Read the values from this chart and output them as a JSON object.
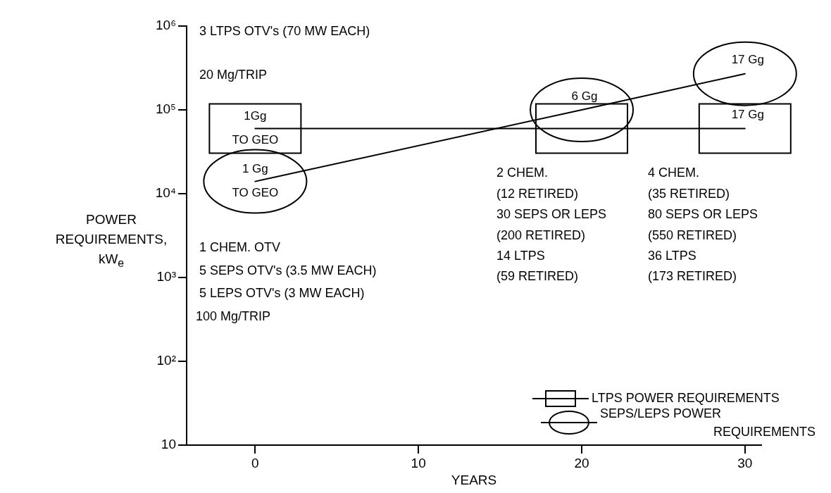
{
  "chart_data": {
    "type": "line",
    "xlabel": "YEARS",
    "ylabel": "POWER REQUIREMENTS, kW$_{e}$",
    "x": [
      0,
      20,
      30
    ],
    "series": [
      {
        "name": "LTPS POWER REQUIREMENTS",
        "color": "#000000",
        "values": [
          60000,
          60000,
          60000
        ]
      },
      {
        "name": "SEPS/LEPS POWER REQUIREMENTS",
        "color": "#000000",
        "values": [
          14000,
          100000,
          270000
        ]
      }
    ],
    "xlim": [
      -4.2,
      31
    ],
    "xticks": [
      0,
      10,
      20,
      30
    ],
    "ylim": [
      10,
      1000000
    ],
    "yticks": [
      10,
      {
        "value": 100,
        "label": "10²"
      },
      {
        "value": 1000,
        "label": "10³"
      },
      {
        "value": 10000,
        "label": "10⁴"
      },
      {
        "value": 100000,
        "label": "10⁵"
      },
      {
        "value": 1000000,
        "label": "10⁶"
      }
    ],
    "log": true,
    "grid": false,
    "legend": "bottom right",
    "line_style": "solid",
    "annotations": [
      "3 LTPS OTV's (70 MW EACH)",
      "20 Mg/TRIP",
      "1 CHEM. OTV",
      "5 SEPS OTV's (3.5 MW EACH)",
      "5 LEPS OTV's (3 MW EACH)",
      "100 Mg/TRIP",
      "2 CHEM.",
      "(12 RETIRED)",
      "30 SEPS OR LEPS",
      "(200 RETIRED)",
      "14 LTPS",
      "(59 RETIRED)",
      "4 CHEM.",
      "(35 RETIRED)",
      "80 SEPS OR LEPS",
      "(550 RETIRED)",
      "36 LTPS",
      "(173 RETIRED)",
      {
        "text": "1Gg\nTO GEO",
        "x": 0,
        "y": 60000
      },
      {
        "text": "17 Gg",
        "x": 30,
        "y": 60000
      },
      {
        "text": "1 Gg\nTO GEO",
        "x": 0,
        "y": 14000
      },
      {
        "text": "6 Gg",
        "x": 20,
        "y": 100000
      },
      {
        "text": "17 Gg",
        "x": 30,
        "y": 270000
      }
    ]
  }
}
